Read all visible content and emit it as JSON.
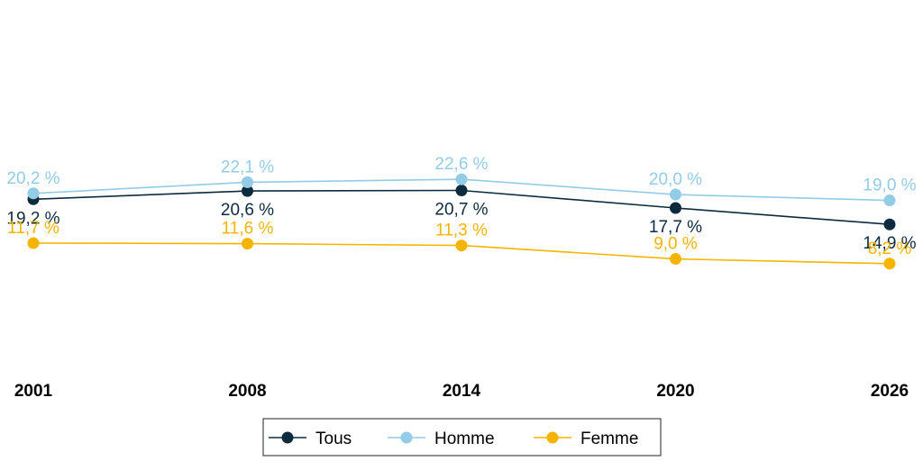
{
  "chart_data": {
    "type": "line",
    "categories": [
      "2001",
      "2008",
      "2014",
      "2020",
      "2026"
    ],
    "series": [
      {
        "name": "Tous",
        "color": "#0d2b3e",
        "values": [
          19.2,
          20.6,
          20.7,
          17.7,
          14.9
        ],
        "labels": [
          "19,2 %",
          "20,6 %",
          "20,7 %",
          "17,7 %",
          "14,9 %"
        ],
        "label_position": "below"
      },
      {
        "name": "Homme",
        "color": "#92cce6",
        "values": [
          20.2,
          22.1,
          22.6,
          20.0,
          19.0
        ],
        "labels": [
          "20,2 %",
          "22,1 %",
          "22,6 %",
          "20,0 %",
          "19,0 %"
        ],
        "label_position": "above"
      },
      {
        "name": "Femme",
        "color": "#f5b400",
        "values": [
          11.7,
          11.6,
          11.3,
          9.0,
          8.2
        ],
        "labels": [
          "11,7 %",
          "11,6 %",
          "11,3 %",
          "9,0 %",
          "8,2 %"
        ],
        "label_position": "above"
      }
    ],
    "ylim": [
      0,
      25
    ],
    "y_axis_visible": false,
    "grid": false,
    "legend": "bottom-center"
  }
}
